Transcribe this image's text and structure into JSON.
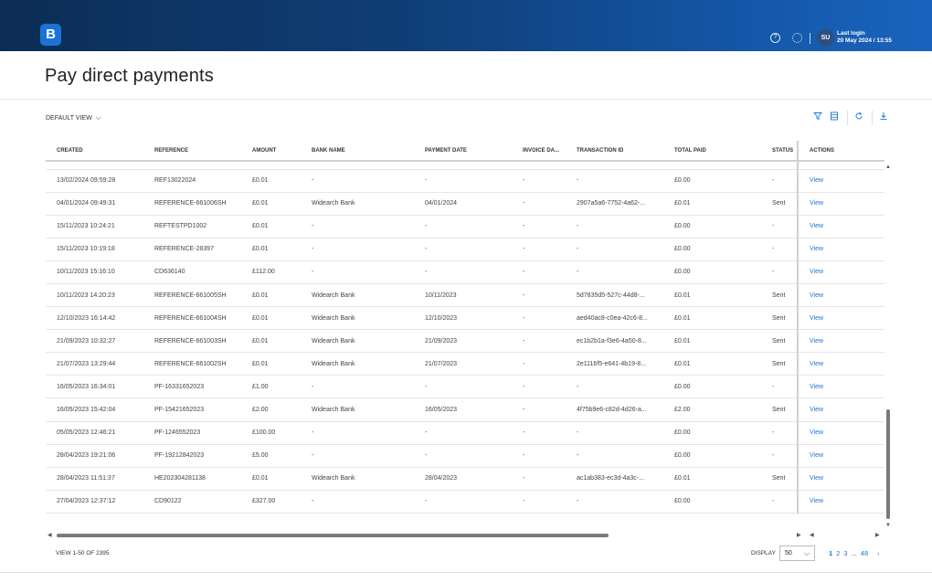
{
  "header": {
    "logo_letter": "B",
    "avatar_initials": "SU",
    "last_login_label": "Last login",
    "last_login_value": "20 May 2024 / 13:55",
    "icons": [
      "help-icon",
      "settings-icon"
    ]
  },
  "page": {
    "title": "Pay direct payments"
  },
  "toolbar": {
    "view_label": "DEFAULT VIEW",
    "icons": [
      "filter-icon",
      "columns-icon",
      "refresh-icon",
      "download-icon"
    ]
  },
  "table": {
    "columns": [
      "CREATED",
      "REFERENCE",
      "AMOUNT",
      "BANK NAME",
      "PAYMENT DATE",
      "INVOICE DA...",
      "TRANSACTION ID",
      "TOTAL PAID",
      "STATUS",
      "ACTIONS"
    ],
    "rows": [
      {
        "created": "13/02/2024 09:59:28",
        "reference": "REF13022024",
        "amount": "£0.01",
        "bank": "-",
        "payment_date": "-",
        "invoice_date": "-",
        "transaction_id": "-",
        "total_paid": "£0.00",
        "status": "-",
        "action": "View"
      },
      {
        "created": "04/01/2024 09:49:31",
        "reference": "REFERENCE-661006SH",
        "amount": "£0.01",
        "bank": "Widearch Bank",
        "payment_date": "04/01/2024",
        "invoice_date": "-",
        "transaction_id": "2907a5a6-7752-4a62-...",
        "total_paid": "£0.01",
        "status": "Sent",
        "action": "View"
      },
      {
        "created": "15/11/2023 10:24:21",
        "reference": "REFTESTPD1002",
        "amount": "£0.01",
        "bank": "-",
        "payment_date": "-",
        "invoice_date": "-",
        "transaction_id": "-",
        "total_paid": "£0.00",
        "status": "-",
        "action": "View"
      },
      {
        "created": "15/11/2023 10:19:18",
        "reference": "REFERENCE-28397",
        "amount": "£0.01",
        "bank": "-",
        "payment_date": "-",
        "invoice_date": "-",
        "transaction_id": "-",
        "total_paid": "£0.00",
        "status": "-",
        "action": "View"
      },
      {
        "created": "10/11/2023 15:16:10",
        "reference": "CD636140",
        "amount": "£112.00",
        "bank": "-",
        "payment_date": "-",
        "invoice_date": "-",
        "transaction_id": "-",
        "total_paid": "£0.00",
        "status": "-",
        "action": "View"
      },
      {
        "created": "10/11/2023 14:20:23",
        "reference": "REFERENCE-661005SH",
        "amount": "£0.01",
        "bank": "Widearch Bank",
        "payment_date": "10/11/2023",
        "invoice_date": "-",
        "transaction_id": "5d7835d5-527c-44d8-...",
        "total_paid": "£0.01",
        "status": "Sent",
        "action": "View"
      },
      {
        "created": "12/10/2023 16:14:42",
        "reference": "REFERENCE-661004SH",
        "amount": "£0.01",
        "bank": "Widearch Bank",
        "payment_date": "12/10/2023",
        "invoice_date": "-",
        "transaction_id": "aed40ac8-c0ea-42c6-8...",
        "total_paid": "£0.01",
        "status": "Sent",
        "action": "View"
      },
      {
        "created": "21/09/2023 10:32:27",
        "reference": "REFERENCE-661003SH",
        "amount": "£0.01",
        "bank": "Widearch Bank",
        "payment_date": "21/09/2023",
        "invoice_date": "-",
        "transaction_id": "ec1b2b1a-f3e6-4a50-8...",
        "total_paid": "£0.01",
        "status": "Sent",
        "action": "View"
      },
      {
        "created": "21/07/2023 13:29:44",
        "reference": "REFERENCE-661002SH",
        "amount": "£0.01",
        "bank": "Widearch Bank",
        "payment_date": "21/07/2023",
        "invoice_date": "-",
        "transaction_id": "2e1116f5-e641-4b19-8...",
        "total_paid": "£0.01",
        "status": "Sent",
        "action": "View"
      },
      {
        "created": "16/05/2023 16:34:01",
        "reference": "PF-16331652023",
        "amount": "£1.00",
        "bank": "-",
        "payment_date": "-",
        "invoice_date": "-",
        "transaction_id": "-",
        "total_paid": "£0.00",
        "status": "-",
        "action": "View"
      },
      {
        "created": "16/05/2023 15:42:04",
        "reference": "PF-15421652023",
        "amount": "£2.00",
        "bank": "Widearch Bank",
        "payment_date": "16/05/2023",
        "invoice_date": "-",
        "transaction_id": "4f75b9e6-c82d-4d26-a...",
        "total_paid": "£2.00",
        "status": "Sent",
        "action": "View"
      },
      {
        "created": "05/05/2023 12:46:21",
        "reference": "PF-1246552023",
        "amount": "£100.00",
        "bank": "-",
        "payment_date": "-",
        "invoice_date": "-",
        "transaction_id": "-",
        "total_paid": "£0.00",
        "status": "-",
        "action": "View"
      },
      {
        "created": "28/04/2023 19:21:06",
        "reference": "PF-19212842023",
        "amount": "£5.00",
        "bank": "-",
        "payment_date": "-",
        "invoice_date": "-",
        "transaction_id": "-",
        "total_paid": "£0.00",
        "status": "-",
        "action": "View"
      },
      {
        "created": "28/04/2023 11:51:37",
        "reference": "HE202304281138",
        "amount": "£0.01",
        "bank": "Widearch Bank",
        "payment_date": "28/04/2023",
        "invoice_date": "-",
        "transaction_id": "ac1ab383-ec3d-4a3c-...",
        "total_paid": "£0.01",
        "status": "Sent",
        "action": "View"
      },
      {
        "created": "27/04/2023 12:37:12",
        "reference": "CD90122",
        "amount": "£327.00",
        "bank": "-",
        "payment_date": "-",
        "invoice_date": "-",
        "transaction_id": "-",
        "total_paid": "£0.00",
        "status": "-",
        "action": "View"
      }
    ]
  },
  "footer": {
    "view_count": "VIEW 1-50 OF 2395",
    "display_label": "DISPLAY",
    "display_value": "50",
    "pages": [
      "1",
      "2",
      "3",
      "...",
      "48"
    ],
    "next_symbol": "›"
  },
  "colors": {
    "accent": "#1b74d4",
    "header_dark": "#0c2d55",
    "header_light": "#1a63bd"
  }
}
